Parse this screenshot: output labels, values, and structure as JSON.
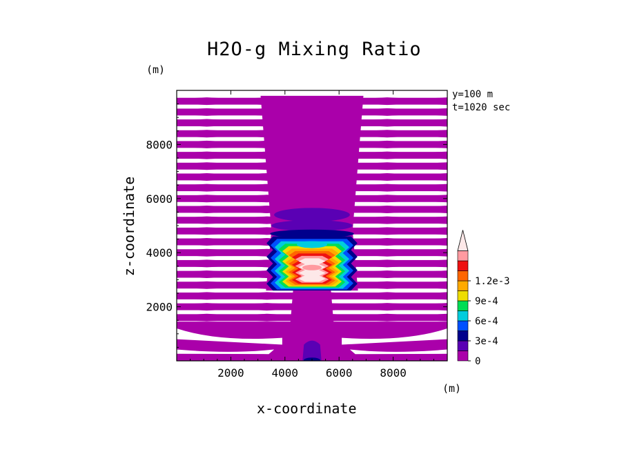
{
  "chart_data": {
    "type": "heatmap",
    "title": "H2O-g Mixing Ratio",
    "xlabel": "x-coordinate",
    "ylabel": "z-coordinate",
    "x_unit": "(m)",
    "y_unit": "(m)",
    "annotations": [
      "y=100 m",
      "t=1020 sec"
    ],
    "xlim": [
      0,
      10000
    ],
    "ylim": [
      0,
      10000
    ],
    "x_ticks": [
      2000,
      4000,
      6000,
      8000
    ],
    "y_ticks": [
      2000,
      4000,
      6000,
      8000
    ],
    "x_tick_labels": [
      "2000",
      "4000",
      "6000",
      "8000"
    ],
    "y_tick_labels": [
      "2000",
      "4000",
      "6000",
      "8000"
    ],
    "colorbar": {
      "levels": [
        0,
        0.00015,
        0.0003,
        0.00045,
        0.0006,
        0.00075,
        0.0009,
        0.00105,
        0.0012,
        0.00135
      ],
      "colors": [
        "#aa00aa",
        "#5a00b4",
        "#00008c",
        "#0050ff",
        "#00ccdd",
        "#00dd55",
        "#eedd00",
        "#ffaa00",
        "#ff6600",
        "#ee1111",
        "#ff9aa0",
        "#fde8e8"
      ],
      "tick_labels": [
        "0",
        "3e-4",
        "6e-4",
        "9e-4",
        "1.2e-3"
      ],
      "tick_values": [
        0,
        0.0003,
        0.0006,
        0.0009,
        0.0012
      ],
      "extend": "max"
    },
    "features": {
      "plume_center_x": 5000,
      "core_z_range": [
        2600,
        4600
      ],
      "core_peak": 0.0013,
      "column_z_range": [
        0,
        9800
      ],
      "background_bands_z_step": 400
    }
  }
}
